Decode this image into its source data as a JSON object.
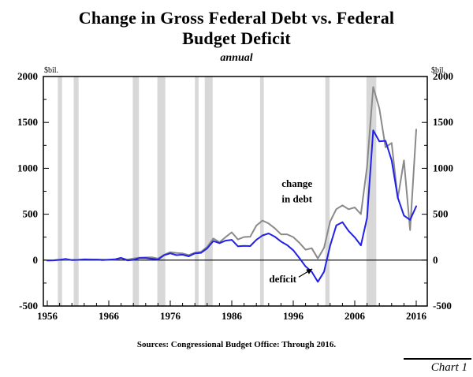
{
  "header": {
    "title_lines": [
      "Change in Gross Federal Debt vs. Federal",
      "Budget Deficit"
    ],
    "subtitle": "annual"
  },
  "footer": {
    "sources": "Sources: Congressional Budget Office:  Through 2016.",
    "chart_number": "Chart 1"
  },
  "chart_data": {
    "type": "line",
    "title": "Change in Gross Federal Debt vs. Federal Budget Deficit",
    "subtitle": "annual",
    "unit_label": "$bil.",
    "xlabel": "",
    "ylabel": "$bil.",
    "x_range": [
      1956,
      2016
    ],
    "ylim": [
      -500,
      2000
    ],
    "y_ticks": [
      2000,
      1500,
      1000,
      500,
      0,
      -500
    ],
    "x_ticks": [
      1956,
      1966,
      1976,
      1986,
      1996,
      2006,
      2016
    ],
    "grid": false,
    "legend_position": "inline-annotations",
    "x": [
      1956,
      1957,
      1958,
      1959,
      1960,
      1961,
      1962,
      1963,
      1964,
      1965,
      1966,
      1967,
      1968,
      1969,
      1970,
      1971,
      1972,
      1973,
      1974,
      1975,
      1976,
      1977,
      1978,
      1979,
      1980,
      1981,
      1982,
      1983,
      1984,
      1985,
      1986,
      1987,
      1988,
      1989,
      1990,
      1991,
      1992,
      1993,
      1994,
      1995,
      1996,
      1997,
      1998,
      1999,
      2000,
      2001,
      2002,
      2003,
      2004,
      2005,
      2006,
      2007,
      2008,
      2009,
      2010,
      2011,
      2012,
      2013,
      2014,
      2015,
      2016
    ],
    "series": [
      {
        "id": "change-in-debt",
        "name": "change in debt",
        "color": "#8a8a8a",
        "values": [
          -4,
          -2,
          6,
          8,
          2,
          3,
          9,
          8,
          6,
          6,
          3,
          6,
          21,
          6,
          17,
          27,
          29,
          31,
          17,
          58,
          87,
          78,
          73,
          55,
          81,
          90,
          144,
          235,
          195,
          251,
          302,
          225,
          252,
          255,
          376,
          431,
          399,
          347,
          281,
          281,
          251,
          188,
          113,
          130,
          18,
          133,
          421,
          555,
          596,
          554,
          574,
          501,
          1017,
          1885,
          1652,
          1229,
          1276,
          672,
          1086,
          327,
          1423
        ]
      },
      {
        "id": "deficit",
        "name": "deficit",
        "color": "#2121e8",
        "values": [
          -4,
          -3,
          3,
          13,
          0,
          3,
          7,
          5,
          6,
          1,
          4,
          9,
          25,
          -3,
          3,
          23,
          23,
          15,
          6,
          53,
          74,
          54,
          59,
          41,
          74,
          79,
          128,
          208,
          185,
          212,
          221,
          150,
          155,
          153,
          221,
          269,
          290,
          255,
          203,
          164,
          107,
          22,
          -69,
          -126,
          -236,
          -128,
          158,
          378,
          413,
          318,
          248,
          161,
          459,
          1413,
          1294,
          1300,
          1087,
          680,
          485,
          438,
          587
        ]
      }
    ],
    "recession_bands": [
      [
        1957.7,
        1958.4
      ],
      [
        1960.3,
        1961.1
      ],
      [
        1969.9,
        1970.9
      ],
      [
        1973.9,
        1975.2
      ],
      [
        1980.0,
        1980.6
      ],
      [
        1981.6,
        1982.9
      ],
      [
        1990.6,
        1991.2
      ],
      [
        2001.2,
        2001.9
      ],
      [
        2007.9,
        2009.5
      ]
    ],
    "colors": {
      "recession_band": "#d8d8d8",
      "axis": "#000000"
    },
    "annotations": [
      {
        "id": "change-in-debt-label",
        "lines": [
          "change",
          "in debt"
        ],
        "anchor_year": 1996.6,
        "anchor_value": 830,
        "line_gap_value": 165
      },
      {
        "id": "deficit-label",
        "lines": [
          "deficit"
        ],
        "anchor_year": 1994.3,
        "anchor_value": -210,
        "arrow": {
          "from_year": 1996.9,
          "from_value": -185,
          "to_year": 1999.1,
          "to_value": -95
        }
      }
    ]
  }
}
